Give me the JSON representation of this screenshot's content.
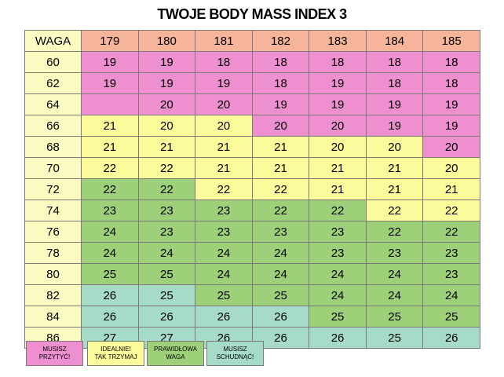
{
  "title": "TWOJE BODY MASS INDEX  3",
  "header": {
    "corner": "WAGA",
    "heights": [
      "179",
      "180",
      "181",
      "182",
      "183",
      "184",
      "185"
    ]
  },
  "colors": {
    "pink": "#ee8fd0",
    "yellow": "#fbfb9c",
    "green": "#9ed07a",
    "teal": "#a6dbc8",
    "header_salmon": "#f6b59a",
    "weight_cream": "#fbfbc2"
  },
  "rows": [
    {
      "weight": "60",
      "values": [
        "19",
        "19",
        "18",
        "18",
        "18",
        "18",
        "18"
      ],
      "cats": [
        "p",
        "p",
        "p",
        "p",
        "p",
        "p",
        "p"
      ]
    },
    {
      "weight": "62",
      "values": [
        "19",
        "19",
        "19",
        "18",
        "19",
        "18",
        "18"
      ],
      "cats": [
        "p",
        "p",
        "p",
        "p",
        "p",
        "p",
        "p"
      ]
    },
    {
      "weight": "64",
      "values": [
        "",
        "20",
        "20",
        "19",
        "19",
        "19",
        "19"
      ],
      "cats": [
        "p",
        "p",
        "p",
        "p",
        "p",
        "p",
        "p"
      ]
    },
    {
      "weight": "66",
      "values": [
        "21",
        "20",
        "20",
        "20",
        "20",
        "19",
        "19"
      ],
      "cats": [
        "y",
        "y",
        "y",
        "p",
        "p",
        "p",
        "p"
      ]
    },
    {
      "weight": "68",
      "values": [
        "21",
        "21",
        "21",
        "21",
        "20",
        "20",
        "20"
      ],
      "cats": [
        "y",
        "y",
        "y",
        "y",
        "y",
        "y",
        "p"
      ]
    },
    {
      "weight": "70",
      "values": [
        "22",
        "22",
        "21",
        "21",
        "21",
        "21",
        "20"
      ],
      "cats": [
        "y",
        "y",
        "y",
        "y",
        "y",
        "y",
        "y"
      ]
    },
    {
      "weight": "72",
      "values": [
        "22",
        "22",
        "22",
        "22",
        "21",
        "21",
        "21"
      ],
      "cats": [
        "g",
        "g",
        "y",
        "y",
        "y",
        "y",
        "y"
      ]
    },
    {
      "weight": "74",
      "values": [
        "23",
        "23",
        "23",
        "22",
        "22",
        "22",
        "22"
      ],
      "cats": [
        "g",
        "g",
        "g",
        "g",
        "g",
        "y",
        "y"
      ]
    },
    {
      "weight": "76",
      "values": [
        "24",
        "23",
        "23",
        "23",
        "23",
        "22",
        "22"
      ],
      "cats": [
        "g",
        "g",
        "g",
        "g",
        "g",
        "g",
        "g"
      ]
    },
    {
      "weight": "78",
      "values": [
        "24",
        "24",
        "24",
        "24",
        "23",
        "23",
        "23"
      ],
      "cats": [
        "g",
        "g",
        "g",
        "g",
        "g",
        "g",
        "g"
      ]
    },
    {
      "weight": "80",
      "values": [
        "25",
        "25",
        "24",
        "24",
        "24",
        "24",
        "23"
      ],
      "cats": [
        "g",
        "g",
        "g",
        "g",
        "g",
        "g",
        "g"
      ]
    },
    {
      "weight": "82",
      "values": [
        "26",
        "25",
        "25",
        "25",
        "24",
        "24",
        "24"
      ],
      "cats": [
        "t",
        "t",
        "g",
        "g",
        "g",
        "g",
        "g"
      ]
    },
    {
      "weight": "84",
      "values": [
        "26",
        "26",
        "26",
        "26",
        "25",
        "25",
        "25"
      ],
      "cats": [
        "t",
        "t",
        "t",
        "t",
        "g",
        "g",
        "g"
      ]
    },
    {
      "weight": "86",
      "values": [
        "27",
        "27",
        "26",
        "26",
        "26",
        "25",
        "26"
      ],
      "cats": [
        "t",
        "t",
        "t",
        "t",
        "t",
        "t",
        "t"
      ]
    }
  ],
  "legend": [
    {
      "label": "MUSISZ\nPRZYTYĆ!",
      "cat": "p"
    },
    {
      "label": "IDEALNIE!\nTAK TRZYMAJ",
      "cat": "y"
    },
    {
      "label": "PRAWIDŁOWA\nWAGA",
      "cat": "g"
    },
    {
      "label": "MUSISZ\nSCHUDNĄĆ!",
      "cat": "t"
    }
  ]
}
